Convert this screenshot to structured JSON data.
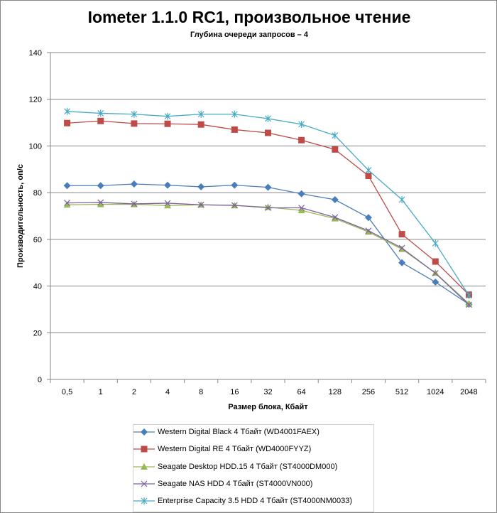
{
  "chart_data": {
    "type": "line",
    "title": "Iometer 1.1.0 RC1, произвольное чтение",
    "subtitle": "Глубина очереди запросов – 4",
    "xlabel": "Размер блока, Кбайт",
    "ylabel": "Производительность, оп/с",
    "ylim": [
      0,
      140
    ],
    "yticks": [
      "0",
      "20",
      "40",
      "60",
      "80",
      "100",
      "120",
      "140"
    ],
    "grid": true,
    "legend_position": "bottom",
    "categories": [
      "0,5",
      "1",
      "2",
      "4",
      "8",
      "16",
      "32",
      "64",
      "128",
      "256",
      "512",
      "1024",
      "2048"
    ],
    "series": [
      {
        "name": "Western Digital Black 4 Тбайт (WD4001FAEX)",
        "color": "#4a7ebb",
        "marker": "diamond",
        "values": [
          83,
          83,
          83.7,
          83.2,
          82.5,
          83.2,
          82.3,
          79.5,
          77,
          69.3,
          50,
          41.7,
          32.2
        ]
      },
      {
        "name": "Western Digital RE 4 Тбайт (WD4000FYYZ)",
        "color": "#be4b48",
        "marker": "square",
        "values": [
          109.8,
          110.7,
          109.6,
          109.5,
          109.2,
          107,
          105.6,
          102.5,
          98.5,
          87.2,
          62.2,
          50.5,
          36.3
        ]
      },
      {
        "name": "Seagate Desktop HDD.15 4 Тбайт (ST4000DM000)",
        "color": "#98b954",
        "marker": "triangle",
        "values": [
          74.8,
          75,
          75,
          74.5,
          74.8,
          74.5,
          73.8,
          72.4,
          68.9,
          63.2,
          55.8,
          45.6,
          32.5
        ]
      },
      {
        "name": "Seagate NAS HDD 4 Тбайт (ST4000VN000)",
        "color": "#7d60a0",
        "marker": "x",
        "values": [
          75.6,
          75.8,
          75.2,
          75.5,
          74.8,
          74.6,
          73.5,
          73.5,
          69.4,
          63.7,
          56.3,
          45.5,
          32
        ]
      },
      {
        "name": "Enterprise Capacity 3.5 HDD 4 Тбайт (ST4000NM0033)",
        "color": "#46aac5",
        "marker": "star",
        "values": [
          114.8,
          114,
          113.6,
          112.7,
          113.6,
          113.6,
          111.7,
          109.3,
          104.5,
          89.6,
          77,
          58.3,
          36
        ]
      }
    ]
  }
}
